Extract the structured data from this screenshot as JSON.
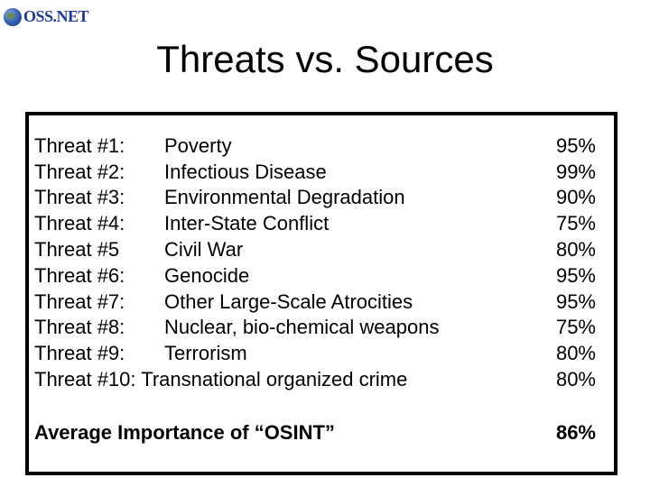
{
  "logo": {
    "text": "OSS.NET"
  },
  "title": "Threats vs. Sources",
  "threats": [
    {
      "label": "Threat #1:",
      "name": "Poverty",
      "pct": "95%"
    },
    {
      "label": "Threat #2:",
      "name": "Infectious Disease",
      "pct": "99%"
    },
    {
      "label": "Threat #3:",
      "name": "Environmental Degradation",
      "pct": "90%"
    },
    {
      "label": "Threat #4:",
      "name": "Inter-State Conflict",
      "pct": "75%"
    },
    {
      "label": "Threat #5",
      "name": "Civil War",
      "pct": "80%"
    },
    {
      "label": "Threat #6:",
      "name": "Genocide",
      "pct": "95%"
    },
    {
      "label": "Threat #7:",
      "name": "Other Large-Scale Atrocities",
      "pct": "95%"
    },
    {
      "label": "Threat #8:",
      "name": "Nuclear, bio-chemical weapons",
      "pct": "75%"
    },
    {
      "label": "Threat #9:",
      "name": "Terrorism",
      "pct": "80%"
    },
    {
      "label": "Threat #10: Transnational organized crime",
      "pct": "80%"
    }
  ],
  "average": {
    "label": "Average Importance of “OSINT”",
    "pct": "86%"
  }
}
